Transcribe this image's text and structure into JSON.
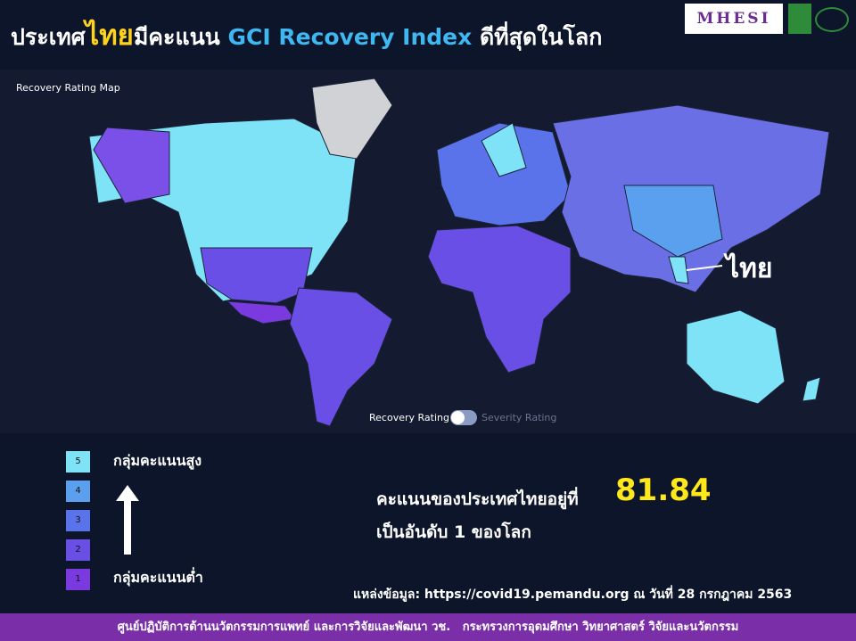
{
  "header": {
    "title_parts": [
      "ประเทศ",
      "ไทย",
      "มีคะแนน",
      "GCI Recovery Index",
      "ดีที่สุดในโลก"
    ],
    "logo": "MHESI"
  },
  "map": {
    "title": "Recovery Rating Map",
    "country_label": "ไทย",
    "toggle": {
      "on": "Recovery Rating",
      "off": "Severity Rating"
    }
  },
  "legend": {
    "high_label": "กลุ่มคะแนนสูง",
    "low_label": "กลุ่มคะแนนต่ำ",
    "levels": [
      {
        "level": 5,
        "color": "#7fe3f7"
      },
      {
        "level": 4,
        "color": "#5aa0ef"
      },
      {
        "level": 3,
        "color": "#5b73ea"
      },
      {
        "level": 2,
        "color": "#6a4fe6"
      },
      {
        "level": 1,
        "color": "#7a3ae0"
      }
    ]
  },
  "score": {
    "text": "คะแนนของประเทศไทยอยู่ที่",
    "value": "81.84",
    "rank_text": "เป็นอันดับ 1 ของโลก"
  },
  "source": "แหล่งข้อมูล: https://covid19.pemandu.org ณ วันที่ 28 กรกฎาคม 2563",
  "footer": "ศูนย์ปฏิบัติการด้านนวัตกรรมการแพทย์ และการวิจัยและพัฒนา วช.   กระทรวงการอุดมศึกษา วิทยาศาสตร์ วิจัยและนวัตกรรม"
}
